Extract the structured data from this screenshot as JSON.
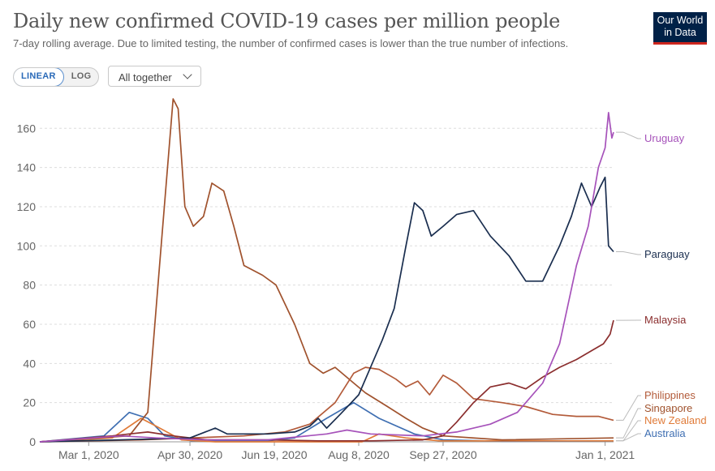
{
  "header": {
    "title": "Daily new confirmed COVID-19 cases per million people",
    "subtitle": "7-day rolling average. Due to limited testing, the number of confirmed cases is lower than the true number of infections.",
    "logo_line1": "Our World",
    "logo_line2": "in Data"
  },
  "controls": {
    "linear_label": "LINEAR",
    "log_label": "LOG",
    "selector_label": "All together"
  },
  "chart_data": {
    "type": "line",
    "x_start": "2020-02-01",
    "x_end": "2021-01-06",
    "xticks": [
      {
        "date": "2020-03-01",
        "label": "Mar 1, 2020"
      },
      {
        "date": "2020-04-30",
        "label": "Apr 30, 2020"
      },
      {
        "date": "2020-06-19",
        "label": "Jun 19, 2020"
      },
      {
        "date": "2020-08-08",
        "label": "Aug 8, 2020"
      },
      {
        "date": "2020-09-27",
        "label": "Sep 27, 2020"
      },
      {
        "date": "2021-01-01",
        "label": "Jan 1, 2021"
      }
    ],
    "ylim": [
      0,
      175
    ],
    "yticks": [
      0,
      20,
      40,
      60,
      80,
      100,
      120,
      140,
      160
    ],
    "grid": true,
    "series": [
      {
        "name": "Australia",
        "color": "#3f6fb2",
        "points": [
          [
            "2020-02-01",
            0
          ],
          [
            "2020-03-10",
            3
          ],
          [
            "2020-03-25",
            15
          ],
          [
            "2020-04-05",
            12
          ],
          [
            "2020-04-15",
            3
          ],
          [
            "2020-05-01",
            0.5
          ],
          [
            "2020-06-15",
            0.5
          ],
          [
            "2020-07-01",
            2
          ],
          [
            "2020-07-20",
            12
          ],
          [
            "2020-08-05",
            20
          ],
          [
            "2020-08-20",
            12
          ],
          [
            "2020-09-10",
            4
          ],
          [
            "2020-09-27",
            1
          ],
          [
            "2020-11-01",
            0.3
          ],
          [
            "2021-01-06",
            0.5
          ]
        ]
      },
      {
        "name": "New Zealand",
        "color": "#e07b39",
        "points": [
          [
            "2020-02-01",
            0
          ],
          [
            "2020-03-15",
            2
          ],
          [
            "2020-04-01",
            12
          ],
          [
            "2020-04-10",
            8
          ],
          [
            "2020-04-25",
            1
          ],
          [
            "2020-05-15",
            0
          ],
          [
            "2020-08-10",
            0
          ],
          [
            "2020-08-20",
            4
          ],
          [
            "2020-09-05",
            2
          ],
          [
            "2020-09-25",
            0.5
          ],
          [
            "2021-01-06",
            0.5
          ]
        ]
      },
      {
        "name": "Singapore",
        "color": "#a0522d",
        "points": [
          [
            "2020-02-01",
            0
          ],
          [
            "2020-03-25",
            3
          ],
          [
            "2020-04-05",
            15
          ],
          [
            "2020-04-12",
            90
          ],
          [
            "2020-04-20",
            175
          ],
          [
            "2020-04-23",
            170
          ],
          [
            "2020-04-27",
            120
          ],
          [
            "2020-05-02",
            110
          ],
          [
            "2020-05-08",
            115
          ],
          [
            "2020-05-13",
            132
          ],
          [
            "2020-05-20",
            128
          ],
          [
            "2020-05-26",
            110
          ],
          [
            "2020-06-01",
            90
          ],
          [
            "2020-06-12",
            85
          ],
          [
            "2020-06-20",
            80
          ],
          [
            "2020-07-01",
            60
          ],
          [
            "2020-07-10",
            40
          ],
          [
            "2020-07-18",
            35
          ],
          [
            "2020-07-25",
            38
          ],
          [
            "2020-08-05",
            30
          ],
          [
            "2020-08-12",
            25
          ],
          [
            "2020-08-25",
            18
          ],
          [
            "2020-09-05",
            12
          ],
          [
            "2020-09-15",
            7
          ],
          [
            "2020-09-27",
            3
          ],
          [
            "2020-11-01",
            1
          ],
          [
            "2021-01-06",
            2
          ]
        ]
      },
      {
        "name": "Philippines",
        "color": "#b35b3a",
        "points": [
          [
            "2020-02-01",
            0
          ],
          [
            "2020-04-01",
            1
          ],
          [
            "2020-05-01",
            2
          ],
          [
            "2020-06-01",
            3
          ],
          [
            "2020-06-25",
            5
          ],
          [
            "2020-07-10",
            9
          ],
          [
            "2020-07-25",
            20
          ],
          [
            "2020-08-05",
            35
          ],
          [
            "2020-08-12",
            38
          ],
          [
            "2020-08-20",
            37
          ],
          [
            "2020-08-30",
            32
          ],
          [
            "2020-09-05",
            28
          ],
          [
            "2020-09-12",
            31
          ],
          [
            "2020-09-19",
            24
          ],
          [
            "2020-09-27",
            34
          ],
          [
            "2020-10-05",
            30
          ],
          [
            "2020-10-15",
            22
          ],
          [
            "2020-11-01",
            20
          ],
          [
            "2020-11-15",
            18
          ],
          [
            "2020-12-01",
            14
          ],
          [
            "2020-12-15",
            13
          ],
          [
            "2020-12-28",
            13
          ],
          [
            "2021-01-06",
            11
          ]
        ]
      },
      {
        "name": "Malaysia",
        "color": "#8b2e2e",
        "points": [
          [
            "2020-02-01",
            0
          ],
          [
            "2020-03-15",
            3
          ],
          [
            "2020-03-25",
            4
          ],
          [
            "2020-04-05",
            5
          ],
          [
            "2020-04-20",
            3
          ],
          [
            "2020-05-10",
            1
          ],
          [
            "2020-06-15",
            1
          ],
          [
            "2020-07-15",
            0.5
          ],
          [
            "2020-08-15",
            0.5
          ],
          [
            "2020-09-15",
            1
          ],
          [
            "2020-09-27",
            3
          ],
          [
            "2020-10-05",
            10
          ],
          [
            "2020-10-15",
            20
          ],
          [
            "2020-10-25",
            28
          ],
          [
            "2020-11-05",
            30
          ],
          [
            "2020-11-15",
            27
          ],
          [
            "2020-11-25",
            33
          ],
          [
            "2020-12-05",
            38
          ],
          [
            "2020-12-15",
            42
          ],
          [
            "2020-12-25",
            47
          ],
          [
            "2020-12-31",
            50
          ],
          [
            "2021-01-04",
            55
          ],
          [
            "2021-01-06",
            62
          ]
        ]
      },
      {
        "name": "Paraguay",
        "color": "#1a2e4f",
        "points": [
          [
            "2020-02-01",
            0
          ],
          [
            "2020-03-20",
            1
          ],
          [
            "2020-04-30",
            2
          ],
          [
            "2020-05-15",
            7
          ],
          [
            "2020-05-22",
            4
          ],
          [
            "2020-06-15",
            4
          ],
          [
            "2020-07-01",
            5
          ],
          [
            "2020-07-10",
            8
          ],
          [
            "2020-07-15",
            12
          ],
          [
            "2020-07-20",
            7
          ],
          [
            "2020-07-28",
            14
          ],
          [
            "2020-08-08",
            24
          ],
          [
            "2020-08-15",
            38
          ],
          [
            "2020-08-22",
            52
          ],
          [
            "2020-08-29",
            68
          ],
          [
            "2020-09-05",
            100
          ],
          [
            "2020-09-10",
            122
          ],
          [
            "2020-09-15",
            118
          ],
          [
            "2020-09-20",
            105
          ],
          [
            "2020-09-27",
            110
          ],
          [
            "2020-10-05",
            116
          ],
          [
            "2020-10-15",
            118
          ],
          [
            "2020-10-25",
            105
          ],
          [
            "2020-11-05",
            95
          ],
          [
            "2020-11-15",
            82
          ],
          [
            "2020-11-25",
            82
          ],
          [
            "2020-12-05",
            100
          ],
          [
            "2020-12-12",
            115
          ],
          [
            "2020-12-18",
            132
          ],
          [
            "2020-12-24",
            120
          ],
          [
            "2020-12-29",
            130
          ],
          [
            "2021-01-01",
            135
          ],
          [
            "2021-01-03",
            100
          ],
          [
            "2021-01-06",
            97
          ]
        ]
      },
      {
        "name": "Uruguay",
        "color": "#a652ba",
        "points": [
          [
            "2020-02-01",
            0
          ],
          [
            "2020-03-20",
            3
          ],
          [
            "2020-04-10",
            2
          ],
          [
            "2020-05-10",
            1
          ],
          [
            "2020-06-15",
            1
          ],
          [
            "2020-07-20",
            4
          ],
          [
            "2020-08-01",
            6
          ],
          [
            "2020-08-15",
            4
          ],
          [
            "2020-09-15",
            3
          ],
          [
            "2020-10-05",
            5
          ],
          [
            "2020-10-25",
            9
          ],
          [
            "2020-11-10",
            15
          ],
          [
            "2020-11-25",
            30
          ],
          [
            "2020-12-05",
            50
          ],
          [
            "2020-12-15",
            90
          ],
          [
            "2020-12-22",
            110
          ],
          [
            "2020-12-28",
            140
          ],
          [
            "2021-01-01",
            150
          ],
          [
            "2021-01-03",
            168
          ],
          [
            "2021-01-05",
            155
          ],
          [
            "2021-01-06",
            158
          ]
        ]
      }
    ]
  }
}
